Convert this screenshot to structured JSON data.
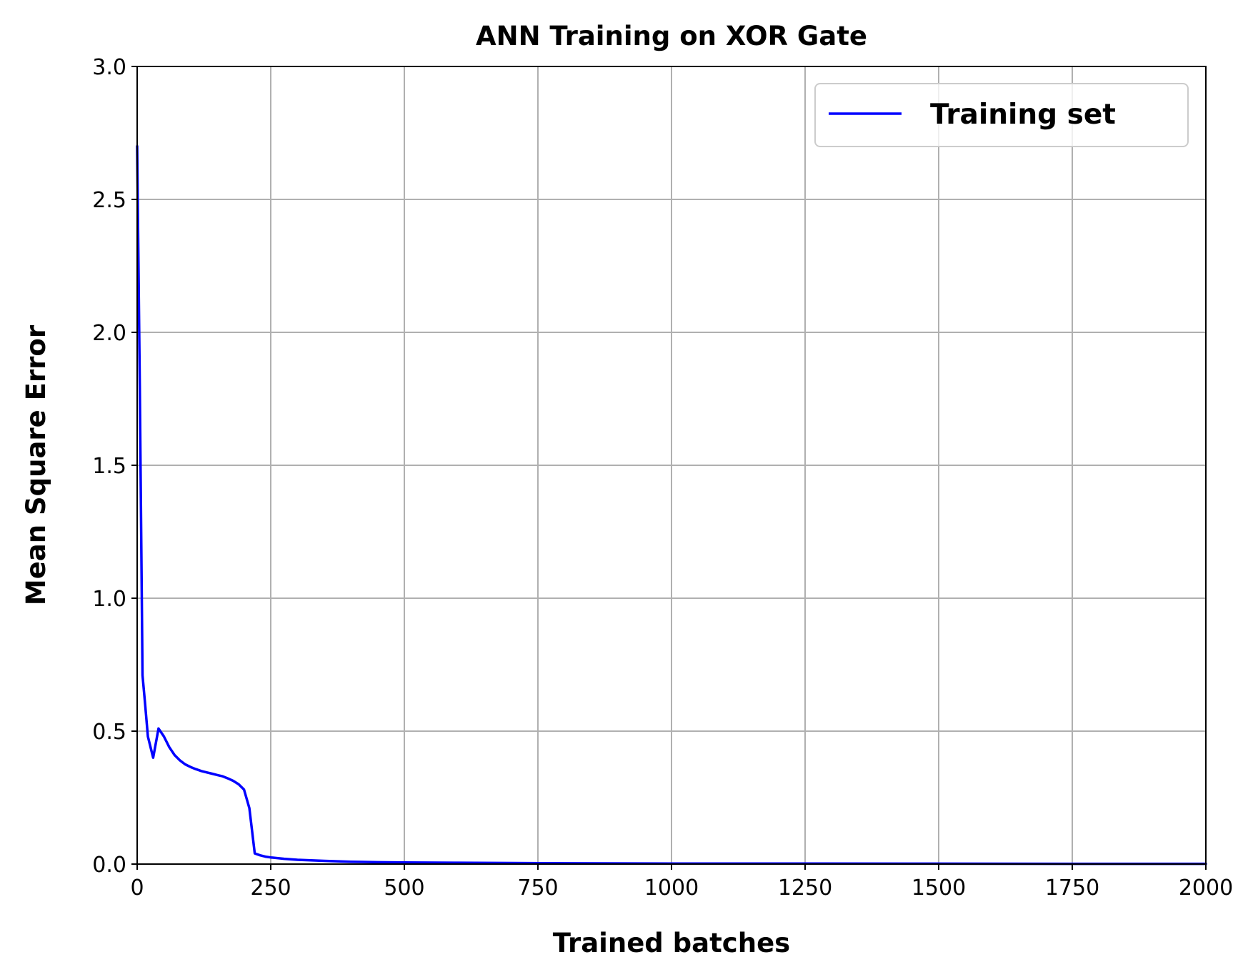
{
  "chart_data": {
    "type": "line",
    "title": "ANN Training on XOR Gate",
    "xlabel": "Trained batches",
    "ylabel": "Mean Square Error",
    "xlim": [
      0,
      2000
    ],
    "ylim": [
      0,
      3.0
    ],
    "xticks": [
      0,
      250,
      500,
      750,
      1000,
      1250,
      1500,
      1750,
      2000
    ],
    "xtick_labels": [
      "0",
      "250",
      "500",
      "750",
      "1000",
      "1250",
      "1500",
      "1750",
      "2000"
    ],
    "yticks": [
      0,
      0.5,
      1.0,
      1.5,
      2.0,
      2.5,
      3.0
    ],
    "ytick_labels": [
      "0.0",
      "0.5",
      "1.0",
      "1.5",
      "2.0",
      "2.5",
      "3.0"
    ],
    "grid": true,
    "legend": {
      "placement": "upper-right"
    },
    "series": [
      {
        "name": "Training set",
        "color": "#0000ff",
        "x": [
          0,
          5,
          10,
          15,
          20,
          30,
          40,
          50,
          60,
          70,
          80,
          90,
          100,
          110,
          120,
          130,
          140,
          150,
          160,
          170,
          180,
          190,
          200,
          210,
          220,
          230,
          240,
          250,
          275,
          300,
          350,
          400,
          450,
          500,
          600,
          700,
          800,
          1000,
          1250,
          1500,
          1750,
          2000
        ],
        "y": [
          2.7,
          1.8,
          0.71,
          0.6,
          0.48,
          0.4,
          0.51,
          0.48,
          0.44,
          0.41,
          0.39,
          0.375,
          0.365,
          0.357,
          0.35,
          0.345,
          0.34,
          0.335,
          0.33,
          0.322,
          0.313,
          0.3,
          0.28,
          0.21,
          0.04,
          0.033,
          0.028,
          0.025,
          0.02,
          0.016,
          0.012,
          0.009,
          0.007,
          0.006,
          0.005,
          0.004,
          0.003,
          0.002,
          0.002,
          0.0015,
          0.001,
          0.001
        ]
      }
    ]
  }
}
